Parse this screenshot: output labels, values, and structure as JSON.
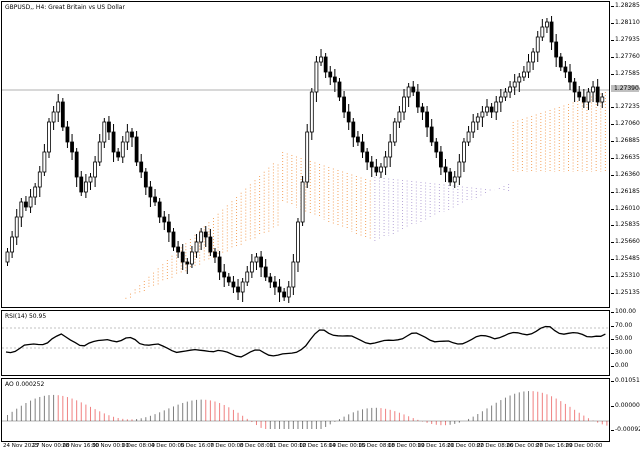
{
  "main": {
    "label": "GBPUSD,, H4:  Great Britain vs US Dollar",
    "current_price": "1.27390",
    "yticks": [
      "1.28285",
      "1.28110",
      "1.27935",
      "1.27760",
      "1.27585",
      "1.27390",
      "1.27235",
      "1.27060",
      "1.26885",
      "1.26635",
      "1.26360",
      "1.26185",
      "1.26010",
      "1.25835",
      "1.25660",
      "1.25485",
      "1.25310",
      "1.25135"
    ]
  },
  "rsi": {
    "label": "RSI(14) 50.95",
    "yticks": [
      "100.00",
      "70.00",
      "50.00",
      "30.00",
      "0.00"
    ]
  },
  "ao": {
    "label": "AO 0.000252",
    "yticks": [
      "0.010514",
      "0.000000",
      "-0.000926"
    ]
  },
  "xaxis": {
    "labels": [
      "24 Nov 2023",
      "27 Nov 00:00",
      "28 Nov 16:00",
      "30 Nov 00:00",
      "1 Dec 08:00",
      "4 Dec 00:00",
      "5 Dec 16:00",
      "7 Dec 00:00",
      "8 Dec 08:00",
      "11 Dec 00:00",
      "12 Dec 16:00",
      "14 Dec 00:00",
      "15 Dec 08:00",
      "18 Dec 00:00",
      "19 Dec 16:00",
      "21 Dec 00:00",
      "22 Dec 08:00",
      "26 Dec 00:00",
      "27 Dec 16:00",
      "29 Dec 00:00"
    ]
  },
  "colors": {
    "candle_bull": "#ffffff",
    "candle_bear": "#000000",
    "cloud_bull": "#f4a460",
    "cloud_bear": "#b9a9d9",
    "ao_up": "#7f7f7f",
    "ao_down": "#f08080",
    "rsi_line": "#000000"
  }
}
